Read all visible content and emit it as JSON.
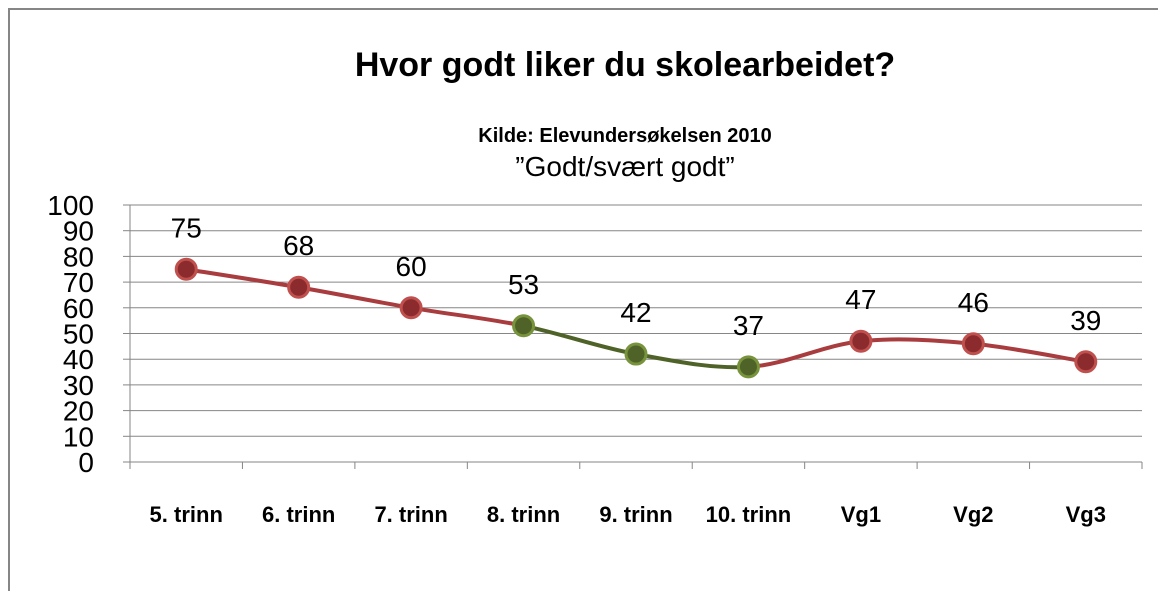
{
  "chart_data": {
    "type": "line",
    "title": "Hvor godt liker du skolearbeidet?",
    "subtitle": "Kilde: Elevundersøkelsen 2010",
    "caption": "”Godt/svært godt”",
    "categories": [
      "5. trinn",
      "6. trinn",
      "7. trinn",
      "8. trinn",
      "9. trinn",
      "10. trinn",
      "Vg1",
      "Vg2",
      "Vg3"
    ],
    "series": [
      {
        "values": [
          75,
          68,
          60,
          53,
          42,
          37,
          47,
          46,
          39
        ],
        "point_colors": [
          "#8c2b2d",
          "#8c2b2d",
          "#8c2b2d",
          "#4f6228",
          "#4f6228",
          "#4f6228",
          "#8c2b2d",
          "#8c2b2d",
          "#8c2b2d"
        ],
        "point_edge_colors": [
          "#c0504d",
          "#c0504d",
          "#c0504d",
          "#77933c",
          "#77933c",
          "#77933c",
          "#c0504d",
          "#c0504d",
          "#c0504d"
        ],
        "segment_colors": [
          "#a83c3e",
          "#a83c3e",
          "#a83c3e",
          "#4f6228",
          "#4f6228",
          "#a83c3e",
          "#a83c3e",
          "#a83c3e"
        ]
      }
    ],
    "ylim": [
      0,
      100
    ],
    "yticks": [
      0,
      10,
      20,
      30,
      40,
      50,
      60,
      70,
      80,
      90,
      100
    ],
    "grid": true,
    "smooth": true
  }
}
